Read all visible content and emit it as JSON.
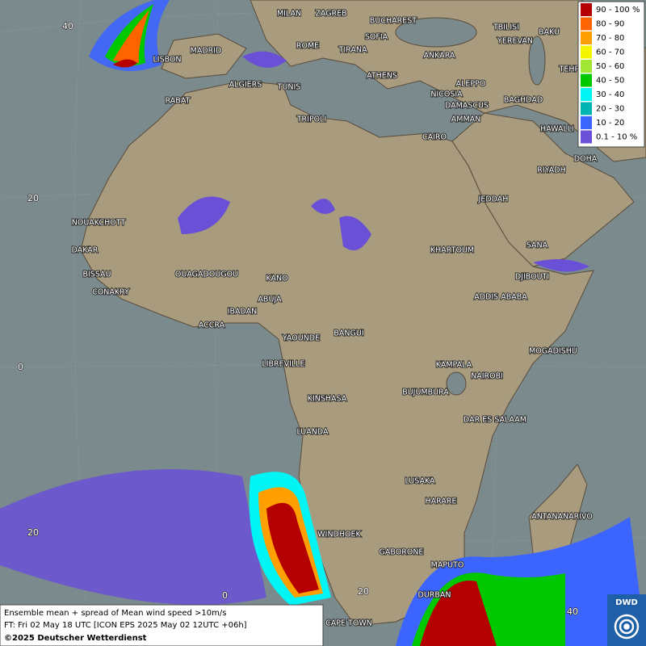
{
  "legend": {
    "entries": [
      {
        "label": "90 - 100 %",
        "color": "#b40000"
      },
      {
        "label": "80 - 90",
        "color": "#ff6400"
      },
      {
        "label": "70 - 80",
        "color": "#ffa000"
      },
      {
        "label": "60 - 70",
        "color": "#f5f500"
      },
      {
        "label": "50 - 60",
        "color": "#a0e632"
      },
      {
        "label": "40 - 50",
        "color": "#00c800"
      },
      {
        "label": "30 - 40",
        "color": "#00f5f5"
      },
      {
        "label": "20 - 30",
        "color": "#00b4b4"
      },
      {
        "label": "10 - 20",
        "color": "#3c64ff"
      },
      {
        "label": "0.1 - 10 %",
        "color": "#6a50d6"
      }
    ]
  },
  "cities": [
    "MILAN",
    "ZAGREB",
    "BUCHAREST",
    "TBILISI",
    "BAKU",
    "SOFIA",
    "YEREVAN",
    "ROME",
    "TIRANA",
    "ANKARA",
    "MADRID",
    "LISBON",
    "TEHRAN",
    "ALGIERS",
    "TUNIS",
    "ATHENS",
    "ALEPPO",
    "NICOSIA",
    "BAGHDAD",
    "RABAT",
    "DAMASCUS",
    "TRIPOLI",
    "AMMAN",
    "CAIRO",
    "HAWALLI",
    "DOHA",
    "RIYADH",
    "JEDDAH",
    "NOUAKCHOTT",
    "DAKAR",
    "SANA",
    "KHARTOUM",
    "BISSAU",
    "DJIBOUTI",
    "OUAGADOUGOU",
    "KANO",
    "CONAKRY",
    "ADDIS ABABA",
    "ABUJA",
    "IBADAN",
    "ACCRA",
    "YAOUNDE",
    "BANGUI",
    "MOGADISHU",
    "LIBREVILLE",
    "KAMPALA",
    "NAIROBI",
    "BUJUMBURA",
    "KINSHASA",
    "DAR ES SALAAM",
    "LUANDA",
    "LUSAKA",
    "HARARE",
    "ANTANANARIVO",
    "WINDHOEK",
    "GABORONE",
    "MAPUTO",
    "DURBAN",
    "CAPE TOWN"
  ],
  "grid_labels": [
    "40",
    "20",
    "0",
    "20",
    "0",
    "20",
    "40"
  ],
  "footer": {
    "line1": "Ensemble mean + spread of Mean wind speed >10m/s",
    "line2": "FT: Fri 02 May 18 UTC [ICON EPS 2025 May 02 12UTC +06h]",
    "line3": "©2025 Deutscher Wetterdienst"
  },
  "logo": "DWD"
}
